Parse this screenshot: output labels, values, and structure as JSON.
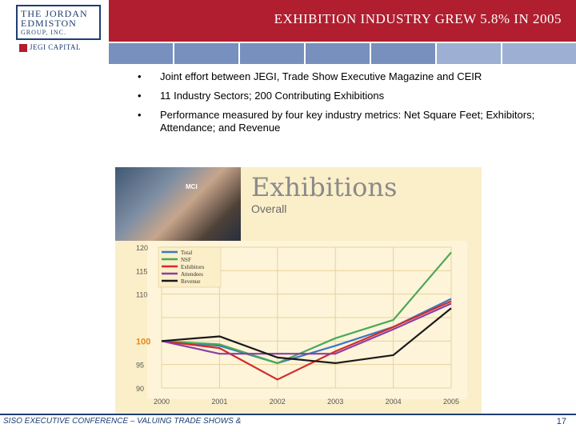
{
  "header": {
    "title": "EXHIBITION INDUSTRY GREW 5.8% IN 2005",
    "logo_line1": "THE JORDAN",
    "logo_line2": "EDMISTON",
    "logo_line3": "GROUP, INC.",
    "capital_label": "JEGI CAPITAL",
    "band_color": "#b01e2f",
    "strip_color": "#7790bd"
  },
  "bullets": [
    {
      "marker": "•",
      "text": "Joint effort between JEGI, Trade Show Executive Magazine and CEIR"
    },
    {
      "marker": "•",
      "text": "11 Industry Sectors; 200 Contributing Exhibitions"
    },
    {
      "marker": "•",
      "text": "Performance measured by four key industry metrics: Net Square Feet; Exhibitors; Attendance; and Revenue"
    }
  ],
  "figure": {
    "title": "Exhibitions",
    "subtitle": "Overall",
    "photo_tag": "MCI",
    "photo_icon": "trade-show-crowd-photo"
  },
  "chart_data": {
    "type": "line",
    "x": [
      "2000",
      "2001",
      "2002",
      "2003",
      "2004",
      "2005"
    ],
    "series": [
      {
        "name": "Total",
        "color": "#3a78c4",
        "values": [
          100,
          99,
          95.3,
          99,
          103,
          109
        ]
      },
      {
        "name": "NSF",
        "color": "#4aa85a",
        "values": [
          100,
          99.3,
          95.3,
          100.6,
          104.5,
          118.9
        ]
      },
      {
        "name": "Exhibitors",
        "color": "#d22b2b",
        "values": [
          100,
          98.5,
          91.8,
          97.8,
          103,
          108.5
        ]
      },
      {
        "name": "Attendees",
        "color": "#8b3fa3",
        "values": [
          100,
          97.3,
          97.3,
          97.3,
          102.5,
          108
        ]
      },
      {
        "name": "Revenue",
        "color": "#1a1a1a",
        "values": [
          100,
          101,
          96.5,
          95.3,
          97,
          107
        ]
      }
    ],
    "yticks": [
      "120",
      "115",
      "110",
      "100",
      "95",
      "90"
    ],
    "ytick_values": [
      120,
      115,
      110,
      100,
      95,
      90
    ],
    "ylim": [
      90,
      120
    ],
    "grid": true,
    "legend": "top-left"
  },
  "footer": {
    "left": "SISO EXECUTIVE CONFERENCE – VALUING TRADE SHOWS &",
    "page": "17"
  }
}
